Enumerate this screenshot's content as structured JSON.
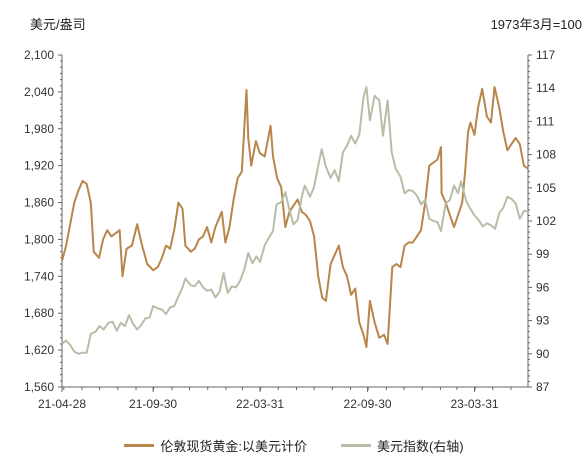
{
  "chart_data": {
    "type": "line",
    "left_unit": "美元/盎司",
    "right_unit": "1973年3月=100",
    "x_tick_labels": [
      "21-04-28",
      "21-09-30",
      "22-03-31",
      "22-09-30",
      "23-03-31"
    ],
    "x_start": "2021-04-28",
    "x_end": "2023-06-30",
    "left_axis": {
      "ylim": [
        1560,
        2100
      ],
      "ticks": [
        1560,
        1620,
        1680,
        1740,
        1800,
        1860,
        1920,
        1980,
        2040,
        2100
      ],
      "tick_labels": [
        "1,560",
        "1,620",
        "1,680",
        "1,740",
        "1,800",
        "1,860",
        "1,920",
        "1,980",
        "2,040",
        "2,100"
      ]
    },
    "right_axis": {
      "ylim": [
        87,
        117
      ],
      "ticks": [
        87,
        90,
        93,
        96,
        99,
        102,
        105,
        108,
        111,
        114,
        117
      ],
      "tick_labels": [
        "87",
        "90",
        "93",
        "96",
        "99",
        "102",
        "105",
        "108",
        "111",
        "114",
        "117"
      ]
    },
    "grid": false,
    "legend_position": "bottom",
    "series": [
      {
        "name": "伦敦现货黄金:以美元计价",
        "axis": "left",
        "color": "#B8864A",
        "points": [
          [
            "2021-04-28",
            1765
          ],
          [
            "2021-05-05",
            1790
          ],
          [
            "2021-05-12",
            1825
          ],
          [
            "2021-05-19",
            1860
          ],
          [
            "2021-05-26",
            1880
          ],
          [
            "2021-06-02",
            1895
          ],
          [
            "2021-06-09",
            1890
          ],
          [
            "2021-06-16",
            1860
          ],
          [
            "2021-06-21",
            1780
          ],
          [
            "2021-06-30",
            1770
          ],
          [
            "2021-07-07",
            1800
          ],
          [
            "2021-07-14",
            1815
          ],
          [
            "2021-07-21",
            1805
          ],
          [
            "2021-07-28",
            1810
          ],
          [
            "2021-08-04",
            1815
          ],
          [
            "2021-08-09",
            1740
          ],
          [
            "2021-08-16",
            1785
          ],
          [
            "2021-08-25",
            1790
          ],
          [
            "2021-09-03",
            1825
          ],
          [
            "2021-09-10",
            1795
          ],
          [
            "2021-09-20",
            1760
          ],
          [
            "2021-09-30",
            1750
          ],
          [
            "2021-10-08",
            1755
          ],
          [
            "2021-10-15",
            1770
          ],
          [
            "2021-10-22",
            1790
          ],
          [
            "2021-10-29",
            1785
          ],
          [
            "2021-11-05",
            1815
          ],
          [
            "2021-11-12",
            1860
          ],
          [
            "2021-11-19",
            1850
          ],
          [
            "2021-11-24",
            1790
          ],
          [
            "2021-12-03",
            1780
          ],
          [
            "2021-12-10",
            1785
          ],
          [
            "2021-12-17",
            1800
          ],
          [
            "2021-12-24",
            1805
          ],
          [
            "2021-12-31",
            1820
          ],
          [
            "2022-01-07",
            1795
          ],
          [
            "2022-01-14",
            1820
          ],
          [
            "2022-01-25",
            1845
          ],
          [
            "2022-01-31",
            1795
          ],
          [
            "2022-02-07",
            1820
          ],
          [
            "2022-02-14",
            1865
          ],
          [
            "2022-02-21",
            1900
          ],
          [
            "2022-02-28",
            1910
          ],
          [
            "2022-03-08",
            2043
          ],
          [
            "2022-03-11",
            1965
          ],
          [
            "2022-03-16",
            1920
          ],
          [
            "2022-03-24",
            1960
          ],
          [
            "2022-03-31",
            1940
          ],
          [
            "2022-04-08",
            1935
          ],
          [
            "2022-04-18",
            1985
          ],
          [
            "2022-04-22",
            1935
          ],
          [
            "2022-04-29",
            1900
          ],
          [
            "2022-05-06",
            1885
          ],
          [
            "2022-05-13",
            1820
          ],
          [
            "2022-05-20",
            1845
          ],
          [
            "2022-05-27",
            1855
          ],
          [
            "2022-06-03",
            1865
          ],
          [
            "2022-06-10",
            1845
          ],
          [
            "2022-06-17",
            1840
          ],
          [
            "2022-06-24",
            1830
          ],
          [
            "2022-07-01",
            1805
          ],
          [
            "2022-07-08",
            1740
          ],
          [
            "2022-07-15",
            1705
          ],
          [
            "2022-07-21",
            1700
          ],
          [
            "2022-07-29",
            1760
          ],
          [
            "2022-08-05",
            1775
          ],
          [
            "2022-08-12",
            1790
          ],
          [
            "2022-08-19",
            1755
          ],
          [
            "2022-08-26",
            1740
          ],
          [
            "2022-09-02",
            1710
          ],
          [
            "2022-09-09",
            1720
          ],
          [
            "2022-09-16",
            1665
          ],
          [
            "2022-09-23",
            1645
          ],
          [
            "2022-09-28",
            1625
          ],
          [
            "2022-10-04",
            1700
          ],
          [
            "2022-10-12",
            1665
          ],
          [
            "2022-10-20",
            1640
          ],
          [
            "2022-10-28",
            1645
          ],
          [
            "2022-11-03",
            1630
          ],
          [
            "2022-11-11",
            1755
          ],
          [
            "2022-11-18",
            1760
          ],
          [
            "2022-11-25",
            1755
          ],
          [
            "2022-12-02",
            1790
          ],
          [
            "2022-12-09",
            1795
          ],
          [
            "2022-12-16",
            1795
          ],
          [
            "2022-12-23",
            1805
          ],
          [
            "2022-12-30",
            1815
          ],
          [
            "2023-01-06",
            1860
          ],
          [
            "2023-01-13",
            1920
          ],
          [
            "2023-01-20",
            1925
          ],
          [
            "2023-01-27",
            1930
          ],
          [
            "2023-02-02",
            1950
          ],
          [
            "2023-02-03",
            1875
          ],
          [
            "2023-02-10",
            1860
          ],
          [
            "2023-02-17",
            1840
          ],
          [
            "2023-02-24",
            1820
          ],
          [
            "2023-03-03",
            1840
          ],
          [
            "2023-03-10",
            1860
          ],
          [
            "2023-03-15",
            1910
          ],
          [
            "2023-03-20",
            1975
          ],
          [
            "2023-03-24",
            1990
          ],
          [
            "2023-03-31",
            1970
          ],
          [
            "2023-04-06",
            2015
          ],
          [
            "2023-04-13",
            2045
          ],
          [
            "2023-04-21",
            2000
          ],
          [
            "2023-04-28",
            1990
          ],
          [
            "2023-05-04",
            2048
          ],
          [
            "2023-05-12",
            2015
          ],
          [
            "2023-05-19",
            1975
          ],
          [
            "2023-05-26",
            1945
          ],
          [
            "2023-06-02",
            1955
          ],
          [
            "2023-06-09",
            1965
          ],
          [
            "2023-06-16",
            1955
          ],
          [
            "2023-06-23",
            1920
          ],
          [
            "2023-06-30",
            1915
          ]
        ]
      },
      {
        "name": "美元指数(右轴)",
        "axis": "right",
        "color": "#B8BDA8",
        "points": [
          [
            "2021-04-28",
            90.9
          ],
          [
            "2021-05-05",
            91.2
          ],
          [
            "2021-05-12",
            90.8
          ],
          [
            "2021-05-19",
            90.2
          ],
          [
            "2021-05-26",
            90.0
          ],
          [
            "2021-06-02",
            90.1
          ],
          [
            "2021-06-09",
            90.1
          ],
          [
            "2021-06-16",
            91.8
          ],
          [
            "2021-06-24",
            92.0
          ],
          [
            "2021-07-01",
            92.5
          ],
          [
            "2021-07-08",
            92.2
          ],
          [
            "2021-07-16",
            92.8
          ],
          [
            "2021-07-23",
            92.9
          ],
          [
            "2021-07-30",
            92.1
          ],
          [
            "2021-08-06",
            92.8
          ],
          [
            "2021-08-13",
            92.5
          ],
          [
            "2021-08-20",
            93.5
          ],
          [
            "2021-08-27",
            92.7
          ],
          [
            "2021-09-03",
            92.2
          ],
          [
            "2021-09-10",
            92.6
          ],
          [
            "2021-09-17",
            93.2
          ],
          [
            "2021-09-24",
            93.3
          ],
          [
            "2021-09-30",
            94.3
          ],
          [
            "2021-10-08",
            94.1
          ],
          [
            "2021-10-15",
            94.0
          ],
          [
            "2021-10-22",
            93.6
          ],
          [
            "2021-10-29",
            94.2
          ],
          [
            "2021-11-05",
            94.3
          ],
          [
            "2021-11-12",
            95.2
          ],
          [
            "2021-11-19",
            96.0
          ],
          [
            "2021-11-24",
            96.8
          ],
          [
            "2021-12-03",
            96.2
          ],
          [
            "2021-12-10",
            96.1
          ],
          [
            "2021-12-17",
            96.6
          ],
          [
            "2021-12-24",
            96.0
          ],
          [
            "2021-12-31",
            95.7
          ],
          [
            "2022-01-07",
            95.8
          ],
          [
            "2022-01-14",
            95.1
          ],
          [
            "2022-01-21",
            95.6
          ],
          [
            "2022-01-28",
            97.3
          ],
          [
            "2022-02-04",
            95.5
          ],
          [
            "2022-02-11",
            96.1
          ],
          [
            "2022-02-18",
            96.0
          ],
          [
            "2022-02-25",
            96.6
          ],
          [
            "2022-03-04",
            97.6
          ],
          [
            "2022-03-11",
            99.1
          ],
          [
            "2022-03-18",
            98.2
          ],
          [
            "2022-03-25",
            98.8
          ],
          [
            "2022-03-31",
            98.3
          ],
          [
            "2022-04-08",
            99.8
          ],
          [
            "2022-04-14",
            100.4
          ],
          [
            "2022-04-22",
            101.1
          ],
          [
            "2022-04-28",
            103.5
          ],
          [
            "2022-05-06",
            103.7
          ],
          [
            "2022-05-13",
            104.6
          ],
          [
            "2022-05-20",
            103.0
          ],
          [
            "2022-05-27",
            101.7
          ],
          [
            "2022-06-03",
            102.1
          ],
          [
            "2022-06-10",
            104.2
          ],
          [
            "2022-06-15",
            105.2
          ],
          [
            "2022-06-24",
            104.2
          ],
          [
            "2022-07-01",
            105.1
          ],
          [
            "2022-07-08",
            107.0
          ],
          [
            "2022-07-14",
            108.5
          ],
          [
            "2022-07-21",
            106.9
          ],
          [
            "2022-07-29",
            105.9
          ],
          [
            "2022-08-05",
            106.6
          ],
          [
            "2022-08-12",
            105.6
          ],
          [
            "2022-08-19",
            108.2
          ],
          [
            "2022-08-26",
            108.8
          ],
          [
            "2022-09-02",
            109.7
          ],
          [
            "2022-09-09",
            109.0
          ],
          [
            "2022-09-16",
            109.8
          ],
          [
            "2022-09-23",
            113.2
          ],
          [
            "2022-09-28",
            114.1
          ],
          [
            "2022-10-04",
            111.1
          ],
          [
            "2022-10-12",
            113.3
          ],
          [
            "2022-10-20",
            112.9
          ],
          [
            "2022-10-26",
            109.7
          ],
          [
            "2022-11-03",
            112.9
          ],
          [
            "2022-11-10",
            108.2
          ],
          [
            "2022-11-17",
            106.7
          ],
          [
            "2022-11-25",
            106.0
          ],
          [
            "2022-12-02",
            104.5
          ],
          [
            "2022-12-09",
            104.8
          ],
          [
            "2022-12-16",
            104.7
          ],
          [
            "2022-12-23",
            104.3
          ],
          [
            "2022-12-30",
            103.5
          ],
          [
            "2023-01-06",
            103.9
          ],
          [
            "2023-01-13",
            102.2
          ],
          [
            "2023-01-20",
            102.0
          ],
          [
            "2023-01-27",
            101.9
          ],
          [
            "2023-02-02",
            101.1
          ],
          [
            "2023-02-10",
            103.6
          ],
          [
            "2023-02-17",
            103.9
          ],
          [
            "2023-02-24",
            105.2
          ],
          [
            "2023-03-03",
            104.5
          ],
          [
            "2023-03-08",
            105.6
          ],
          [
            "2023-03-17",
            103.8
          ],
          [
            "2023-03-24",
            103.1
          ],
          [
            "2023-03-31",
            102.5
          ],
          [
            "2023-04-07",
            102.1
          ],
          [
            "2023-04-14",
            101.5
          ],
          [
            "2023-04-21",
            101.8
          ],
          [
            "2023-04-28",
            101.6
          ],
          [
            "2023-05-05",
            101.3
          ],
          [
            "2023-05-12",
            102.7
          ],
          [
            "2023-05-19",
            103.2
          ],
          [
            "2023-05-26",
            104.2
          ],
          [
            "2023-06-02",
            104.0
          ],
          [
            "2023-06-09",
            103.6
          ],
          [
            "2023-06-16",
            102.2
          ],
          [
            "2023-06-23",
            102.9
          ],
          [
            "2023-06-30",
            102.9
          ]
        ]
      }
    ]
  }
}
